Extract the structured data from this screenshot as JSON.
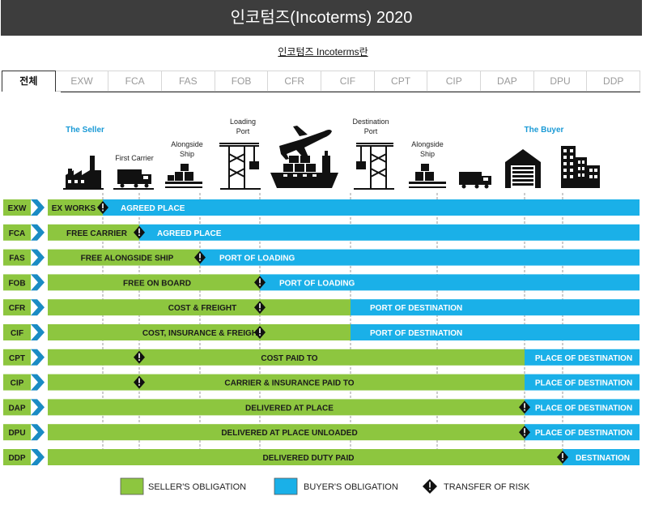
{
  "header": {
    "title": "인코텀즈(Incoterms) 2020"
  },
  "sublink": "인코텀즈 Incoterms란",
  "tabs": [
    "전체",
    "EXW",
    "FCA",
    "FAS",
    "FOB",
    "CFR",
    "CIF",
    "CPT",
    "CIP",
    "DAP",
    "DPU",
    "DDP"
  ],
  "active_tab": "전체",
  "stages": {
    "seller": "The Seller",
    "first_carrier": "First Carrier",
    "alongside_ship_1": [
      "Alongside",
      "Ship"
    ],
    "loading_port": [
      "Loading",
      "Port"
    ],
    "destination_port": [
      "Destination",
      "Port"
    ],
    "alongside_ship_2": [
      "Alongside",
      "Ship"
    ],
    "buyer": "The Buyer"
  },
  "colors": {
    "seller": "#8dc63f",
    "buyer": "#1ab0e8",
    "code_bg": "#8dc63f",
    "code_arrow": "#1a8bc4",
    "stage_label": "#1a9ad6"
  },
  "rows": [
    {
      "code": "EXW",
      "seller": "EX WORKS",
      "buyer": "AGREED PLACE",
      "split": 0,
      "risk": 0
    },
    {
      "code": "FCA",
      "seller": "FREE CARRIER",
      "buyer": "AGREED PLACE",
      "split": 1,
      "risk": 1
    },
    {
      "code": "FAS",
      "seller": "FREE ALONGSIDE SHIP",
      "buyer": "PORT OF LOADING",
      "split": 2,
      "risk": 2
    },
    {
      "code": "FOB",
      "seller": "FREE  ON BOARD",
      "buyer": "PORT OF LOADING",
      "split": 3,
      "risk": 3
    },
    {
      "code": "CFR",
      "seller": "COST & FREIGHT",
      "buyer": "PORT OF DESTINATION",
      "split": 4,
      "risk": 3
    },
    {
      "code": "CIF",
      "seller": "COST, INSURANCE & FREIGHT",
      "buyer": "PORT OF DESTINATION",
      "split": 4,
      "risk": 3
    },
    {
      "code": "CPT",
      "seller": "COST PAID TO",
      "buyer": "PLACE OF DESTINATION",
      "split": 6,
      "risk": 1
    },
    {
      "code": "CIP",
      "seller": "CARRIER & INSURANCE PAID TO",
      "buyer": "PLACE OF DESTINATION",
      "split": 6,
      "risk": 1
    },
    {
      "code": "DAP",
      "seller": "DELIVERED AT PLACE",
      "buyer": "PLACE OF DESTINATION",
      "split": 6,
      "risk": 6
    },
    {
      "code": "DPU",
      "seller": "DELIVERED AT PLACE UNLOADED",
      "buyer": "PLACE OF DESTINATION",
      "split": 6,
      "risk": 6
    },
    {
      "code": "DDP",
      "seller": "DELIVERED DUTY PAID",
      "buyer": "DESTINATION",
      "split": 7,
      "risk": 7
    }
  ],
  "legend": {
    "seller": "SELLER'S OBLIGATION",
    "buyer": "BUYER'S OBLIGATION",
    "risk": "TRANSFER OF RISK"
  }
}
